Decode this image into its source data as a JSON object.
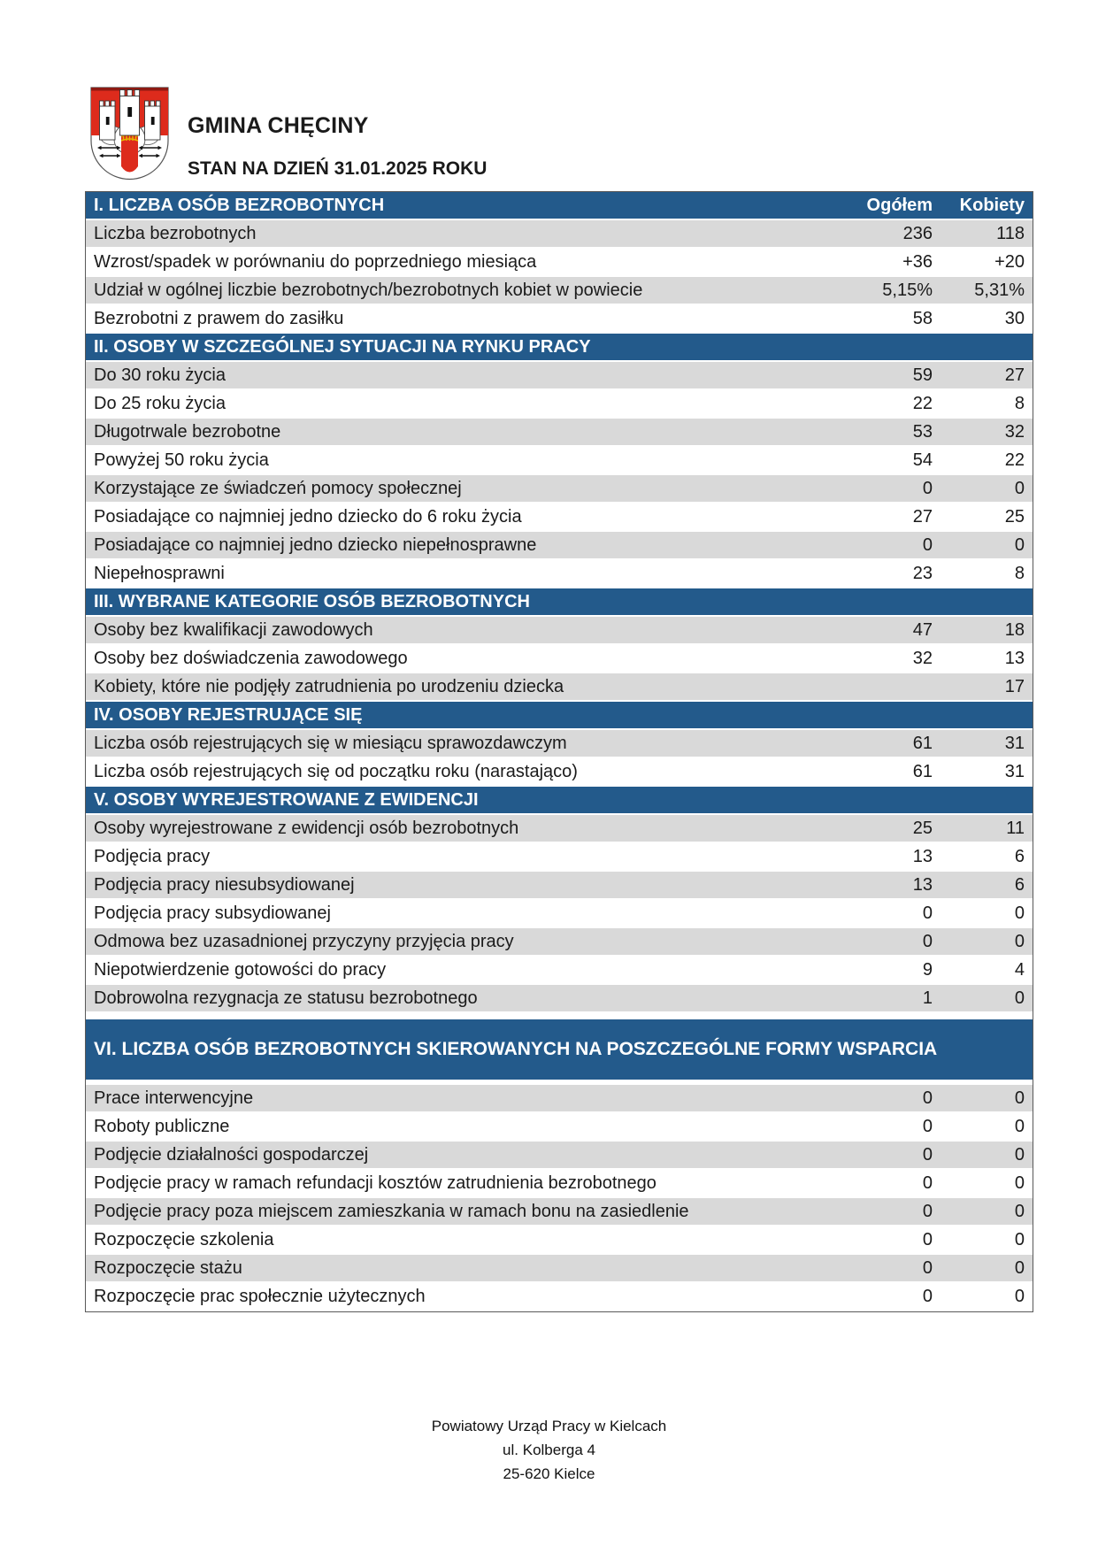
{
  "header": {
    "title": "GMINA CHĘCINY",
    "subtitle": "STAN NA DZIEŃ 31.01.2025 ROKU",
    "logo": "checiny-coat-of-arms"
  },
  "colors": {
    "section_header_blue": "#235A8B",
    "row_gray": "#D9D9D9",
    "table_border": "#595959",
    "shield_red": "#DD2B1C",
    "portcullis_gold": "#E6B400"
  },
  "table": {
    "columns": [
      "Ogółem",
      "Kobiety"
    ],
    "sections": [
      {
        "title": "I. LICZBA OSÓB BEZROBOTNYCH",
        "columns_in_header": true,
        "rows": [
          {
            "label": "Liczba bezrobotnych",
            "ogolem": "236",
            "kobiety": "118"
          },
          {
            "label": "Wzrost/spadek w porównaniu do poprzedniego miesiąca",
            "ogolem": "+36",
            "kobiety": "+20"
          },
          {
            "label": "Udział w ogólnej liczbie bezrobotnych/bezrobotnych kobiet w powiecie",
            "ogolem": "5,15%",
            "kobiety": "5,31%"
          },
          {
            "label": "Bezrobotni z prawem do zasiłku",
            "ogolem": "58",
            "kobiety": "30"
          }
        ]
      },
      {
        "title": "II. OSOBY W SZCZEGÓLNEJ SYTUACJI NA RYNKU PRACY",
        "columns_in_header": false,
        "rows": [
          {
            "label": "Do 30 roku życia",
            "ogolem": "59",
            "kobiety": "27"
          },
          {
            "label": "Do 25 roku życia",
            "ogolem": "22",
            "kobiety": "8"
          },
          {
            "label": "Długotrwale bezrobotne",
            "ogolem": "53",
            "kobiety": "32"
          },
          {
            "label": "Powyżej 50 roku życia",
            "ogolem": "54",
            "kobiety": "22"
          },
          {
            "label": "Korzystające ze świadczeń pomocy społecznej",
            "ogolem": "0",
            "kobiety": "0"
          },
          {
            "label": "Posiadające co najmniej jedno dziecko do 6 roku życia",
            "ogolem": "27",
            "kobiety": "25"
          },
          {
            "label": "Posiadające co najmniej jedno dziecko niepełnosprawne",
            "ogolem": "0",
            "kobiety": "0"
          },
          {
            "label": "Niepełnosprawni",
            "ogolem": "23",
            "kobiety": "8"
          }
        ]
      },
      {
        "title": "III. WYBRANE KATEGORIE OSÓB BEZROBOTNYCH",
        "columns_in_header": false,
        "rows": [
          {
            "label": "Osoby bez kwalifikacji zawodowych",
            "ogolem": "47",
            "kobiety": "18"
          },
          {
            "label": "Osoby bez doświadczenia zawodowego",
            "ogolem": "32",
            "kobiety": "13"
          },
          {
            "label": "Kobiety, które nie podjęły zatrudnienia po urodzeniu dziecka",
            "ogolem": "",
            "kobiety": "17"
          }
        ]
      },
      {
        "title": "IV. OSOBY REJESTRUJĄCE SIĘ",
        "columns_in_header": false,
        "rows": [
          {
            "label": "Liczba osób rejestrujących się w miesiącu sprawozdawczym",
            "ogolem": "61",
            "kobiety": "31"
          },
          {
            "label": "Liczba osób rejestrujących się od początku roku (narastająco)",
            "ogolem": "61",
            "kobiety": "31"
          }
        ]
      },
      {
        "title": "V. OSOBY WYREJESTROWANE Z EWIDENCJI",
        "columns_in_header": false,
        "rows": [
          {
            "label": "Osoby wyrejestrowane z ewidencji osób bezrobotnych",
            "ogolem": "25",
            "kobiety": "11"
          },
          {
            "label": "Podjęcia pracy",
            "ogolem": "13",
            "kobiety": "6"
          },
          {
            "label": "Podjęcia pracy niesubsydiowanej",
            "ogolem": "13",
            "kobiety": "6"
          },
          {
            "label": "Podjęcia pracy subsydiowanej",
            "ogolem": "0",
            "kobiety": "0"
          },
          {
            "label": "Odmowa bez uzasadnionej przyczyny przyjęcia pracy",
            "ogolem": "0",
            "kobiety": "0"
          },
          {
            "label": "Niepotwierdzenie gotowości do pracy",
            "ogolem": "9",
            "kobiety": "4"
          },
          {
            "label": "Dobrowolna rezygnacja ze statusu bezrobotnego",
            "ogolem": "1",
            "kobiety": "0"
          }
        ]
      },
      {
        "title": "VI. LICZBA OSÓB BEZROBOTNYCH SKIEROWANYCH NA POSZCZEGÓLNE FORMY WSPARCIA",
        "columns_in_header": false,
        "tall_header": true,
        "gap_before": 7,
        "gap_after": 4,
        "rows": [
          {
            "label": "Prace interwencyjne",
            "ogolem": "0",
            "kobiety": "0"
          },
          {
            "label": "Roboty publiczne",
            "ogolem": "0",
            "kobiety": "0"
          },
          {
            "label": "Podjęcie działalności gospodarczej",
            "ogolem": "0",
            "kobiety": "0"
          },
          {
            "label": "Podjęcie pracy w ramach refundacji kosztów zatrudnienia bezrobotnego",
            "ogolem": "0",
            "kobiety": "0"
          },
          {
            "label": "Podjęcie pracy poza miejscem zamieszkania w ramach bonu na zasiedlenie",
            "ogolem": "0",
            "kobiety": "0"
          },
          {
            "label": "Rozpoczęcie szkolenia",
            "ogolem": "0",
            "kobiety": "0"
          },
          {
            "label": "Rozpoczęcie stażu",
            "ogolem": "0",
            "kobiety": "0"
          },
          {
            "label": "Rozpoczęcie prac społecznie użytecznych",
            "ogolem": "0",
            "kobiety": "0"
          }
        ]
      }
    ]
  },
  "footer": {
    "lines": [
      "Powiatowy Urząd Pracy w Kielcach",
      "ul. Kolberga 4",
      "25-620 Kielce"
    ]
  }
}
